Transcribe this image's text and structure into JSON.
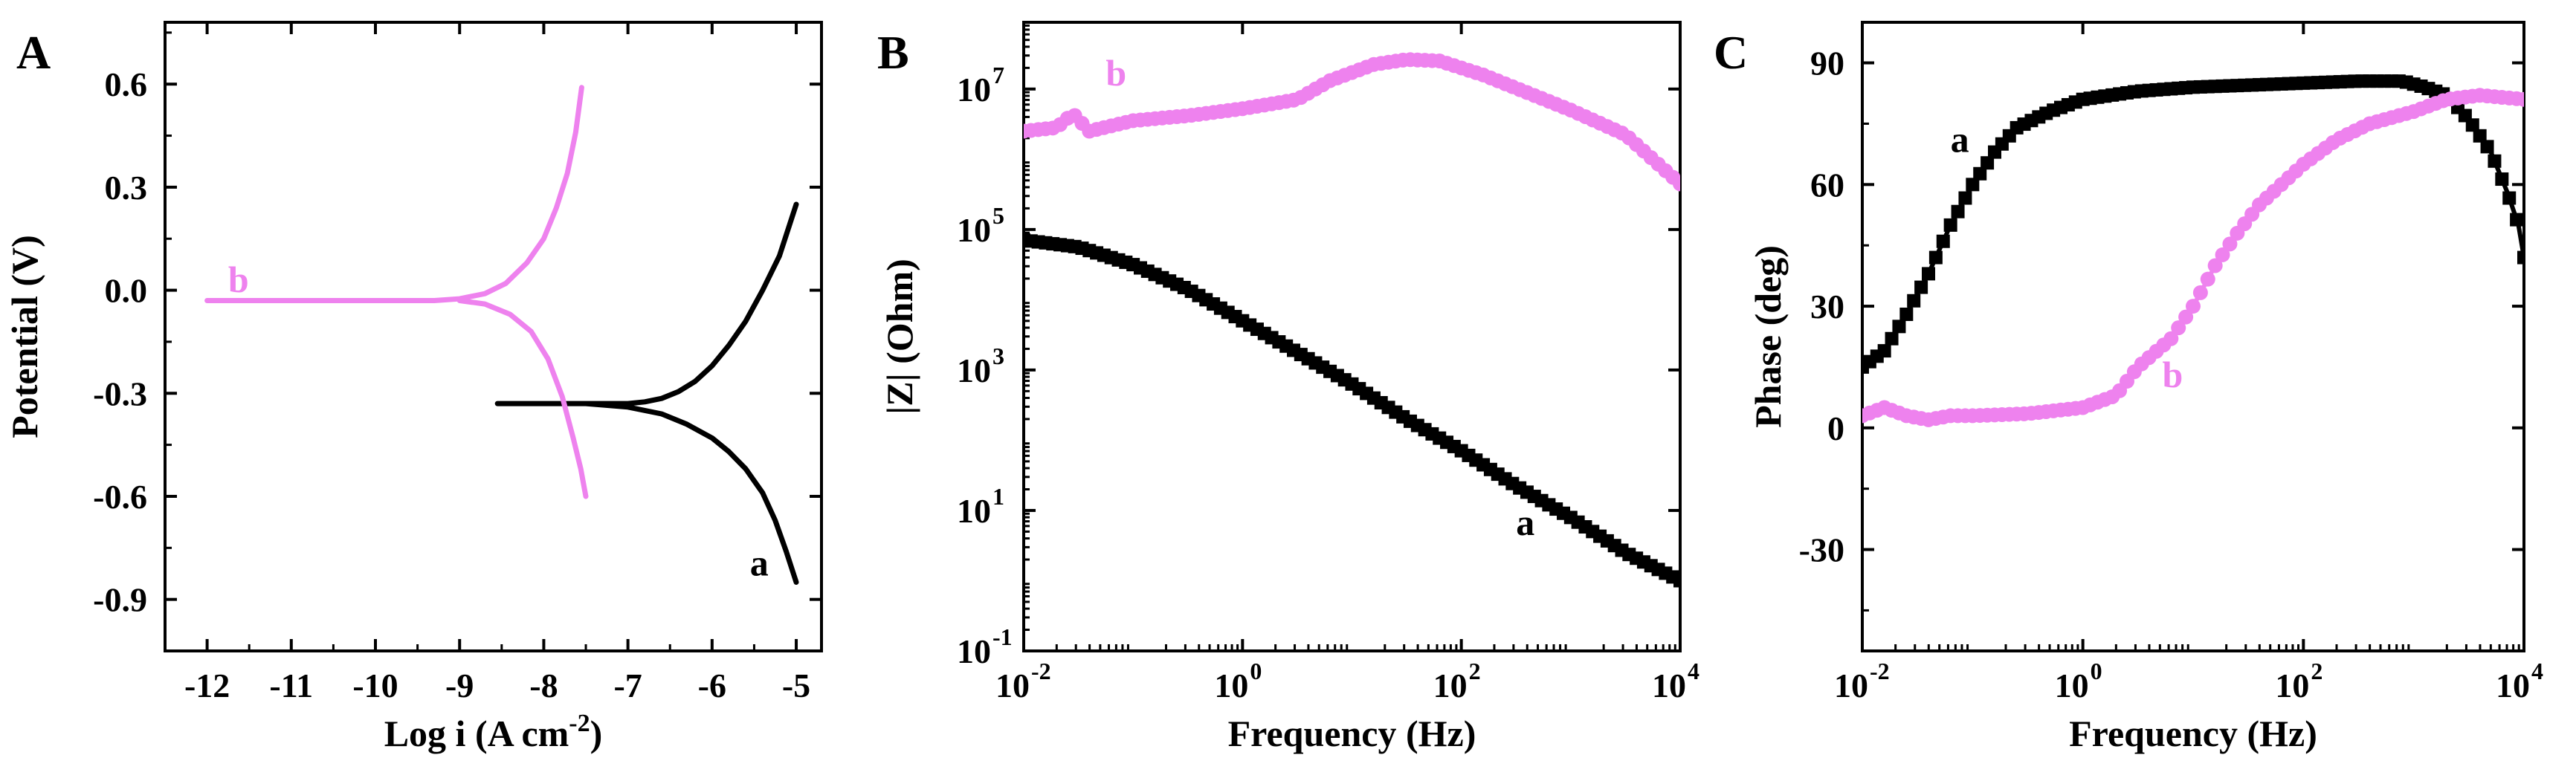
{
  "colors": {
    "a": "#000000",
    "b": "#ee82ee"
  },
  "chart_data": [
    {
      "id": "A",
      "type": "line",
      "panel_label": "A",
      "title": "",
      "xlabel": "Log i (A cm",
      "xlabel_sup": "-2",
      "xlabel_close": ")",
      "ylabel": "Potential (V)",
      "xlim": [
        -12.5,
        -4.7
      ],
      "ylim": [
        -1.05,
        0.78
      ],
      "xticks": [
        -12,
        -11,
        -10,
        -9,
        -8,
        -7,
        -6,
        -5
      ],
      "xtick_labels": [
        "-12",
        "-11",
        "-10",
        "-9",
        "-8",
        "-7",
        "-6",
        "-5"
      ],
      "yticks": [
        0.6,
        0.3,
        0.0,
        -0.3,
        -0.6,
        -0.9
      ],
      "ytick_labels": [
        "0.6",
        "0.3",
        "0.0",
        "-0.3",
        "-0.6",
        "-0.9"
      ],
      "series": [
        {
          "name": "a",
          "color": "#000000",
          "points": [
            [
              -8.55,
              -0.33
            ],
            [
              -8.0,
              -0.33
            ],
            [
              -7.5,
              -0.33
            ],
            [
              -7.0,
              -0.33
            ],
            [
              -6.8,
              -0.325
            ],
            [
              -6.6,
              -0.315
            ],
            [
              -6.4,
              -0.295
            ],
            [
              -6.2,
              -0.265
            ],
            [
              -6.0,
              -0.22
            ],
            [
              -5.8,
              -0.16
            ],
            [
              -5.6,
              -0.09
            ],
            [
              -5.4,
              0.0
            ],
            [
              -5.2,
              0.1
            ],
            [
              -5.0,
              0.25
            ],
            null,
            [
              -7.5,
              -0.33
            ],
            [
              -7.0,
              -0.34
            ],
            [
              -6.6,
              -0.36
            ],
            [
              -6.3,
              -0.39
            ],
            [
              -6.0,
              -0.43
            ],
            [
              -5.8,
              -0.47
            ],
            [
              -5.6,
              -0.52
            ],
            [
              -5.4,
              -0.59
            ],
            [
              -5.25,
              -0.67
            ],
            [
              -5.12,
              -0.76
            ],
            [
              -5.0,
              -0.85
            ]
          ]
        },
        {
          "name": "b",
          "color": "#ee82ee",
          "points": [
            [
              -12.0,
              -0.03
            ],
            [
              -11.0,
              -0.03
            ],
            [
              -10.0,
              -0.03
            ],
            [
              -9.3,
              -0.03
            ],
            [
              -9.0,
              -0.025
            ],
            [
              -8.7,
              -0.01
            ],
            [
              -8.45,
              0.02
            ],
            [
              -8.2,
              0.08
            ],
            [
              -8.0,
              0.15
            ],
            [
              -7.85,
              0.24
            ],
            [
              -7.72,
              0.34
            ],
            [
              -7.62,
              0.46
            ],
            [
              -7.55,
              0.59
            ],
            null,
            [
              -9.0,
              -0.03
            ],
            [
              -8.7,
              -0.04
            ],
            [
              -8.4,
              -0.07
            ],
            [
              -8.15,
              -0.12
            ],
            [
              -7.95,
              -0.2
            ],
            [
              -7.78,
              -0.31
            ],
            [
              -7.65,
              -0.43
            ],
            [
              -7.56,
              -0.52
            ],
            [
              -7.5,
              -0.6
            ]
          ]
        }
      ],
      "annotations": [
        {
          "text": "a",
          "x": -5.55,
          "y": -0.83,
          "color": "#000000"
        },
        {
          "text": "b",
          "x": -11.75,
          "y": -0.005,
          "color": "#ee82ee"
        }
      ]
    },
    {
      "id": "B",
      "type": "line",
      "panel_label": "B",
      "title": "",
      "xlabel": "Frequency (Hz)",
      "ylabel": "|Z| (Ohm)",
      "xscale": "log",
      "yscale": "log",
      "xlim": [
        -2,
        4
      ],
      "ylim": [
        -1,
        7.95
      ],
      "xticks": [
        -2,
        0,
        2,
        4
      ],
      "xtick_labels": [
        "10",
        "10",
        "10",
        "10"
      ],
      "xtick_exps": [
        "-2",
        "0",
        "2",
        "4"
      ],
      "yticks": [
        -1,
        1,
        3,
        5,
        7
      ],
      "ytick_labels": [
        "10",
        "10",
        "10",
        "10",
        "10"
      ],
      "ytick_exps": [
        "-1",
        "1",
        "3",
        "5",
        "7"
      ],
      "series": [
        {
          "name": "a",
          "color": "#000000",
          "marker": "square",
          "points_log10": [
            [
              -2.0,
              4.85
            ],
            [
              -1.5,
              4.75
            ],
            [
              -1.0,
              4.5
            ],
            [
              -0.5,
              4.15
            ],
            [
              0.0,
              3.7
            ],
            [
              0.5,
              3.25
            ],
            [
              1.0,
              2.8
            ],
            [
              1.5,
              2.3
            ],
            [
              2.0,
              1.85
            ],
            [
              2.5,
              1.35
            ],
            [
              3.0,
              0.9
            ],
            [
              3.5,
              0.4
            ],
            [
              4.0,
              0.0
            ]
          ]
        },
        {
          "name": "b",
          "color": "#ee82ee",
          "marker": "circle",
          "points_log10": [
            [
              -2.0,
              6.4
            ],
            [
              -1.7,
              6.45
            ],
            [
              -1.55,
              6.65
            ],
            [
              -1.4,
              6.4
            ],
            [
              -1.0,
              6.55
            ],
            [
              -0.5,
              6.62
            ],
            [
              0.0,
              6.72
            ],
            [
              0.5,
              6.85
            ],
            [
              0.8,
              7.12
            ],
            [
              1.2,
              7.35
            ],
            [
              1.5,
              7.42
            ],
            [
              1.8,
              7.4
            ],
            [
              2.2,
              7.2
            ],
            [
              2.6,
              6.95
            ],
            [
              3.0,
              6.7
            ],
            [
              3.5,
              6.35
            ],
            [
              4.0,
              5.65
            ]
          ]
        }
      ],
      "annotations": [
        {
          "text": "a",
          "x": 2.5,
          "y": 0.65,
          "color": "#000000"
        },
        {
          "text": "b",
          "x": -1.25,
          "y": 7.05,
          "color": "#ee82ee"
        }
      ]
    },
    {
      "id": "C",
      "type": "line",
      "panel_label": "C",
      "title": "",
      "xlabel": "Frequency (Hz)",
      "ylabel": "Phase (deg)",
      "xscale": "log",
      "xlim": [
        -2,
        4
      ],
      "ylim": [
        -55,
        100
      ],
      "xticks": [
        -2,
        0,
        2,
        4
      ],
      "xtick_labels": [
        "10",
        "10",
        "10",
        "10"
      ],
      "xtick_exps": [
        "-2",
        "0",
        "2",
        "4"
      ],
      "yticks": [
        90,
        60,
        30,
        0,
        -30
      ],
      "ytick_labels": [
        "90",
        "60",
        "30",
        "0",
        "-30"
      ],
      "series": [
        {
          "name": "a",
          "color": "#000000",
          "marker": "square",
          "points_log10": [
            [
              -2.0,
              15
            ],
            [
              -1.8,
              19
            ],
            [
              -1.6,
              28
            ],
            [
              -1.4,
              38
            ],
            [
              -1.2,
              50
            ],
            [
              -1.0,
              60
            ],
            [
              -0.8,
              68
            ],
            [
              -0.6,
              74
            ],
            [
              -0.3,
              78
            ],
            [
              0.0,
              81
            ],
            [
              0.5,
              83
            ],
            [
              1.0,
              84
            ],
            [
              1.5,
              84.5
            ],
            [
              2.0,
              85
            ],
            [
              2.5,
              85.5
            ],
            [
              2.9,
              85.5
            ],
            [
              3.1,
              84
            ],
            [
              3.3,
              82
            ],
            [
              3.5,
              76
            ],
            [
              3.7,
              68
            ],
            [
              3.85,
              58
            ],
            [
              3.95,
              50
            ],
            [
              4.0,
              42
            ]
          ]
        },
        {
          "name": "b",
          "color": "#ee82ee",
          "marker": "circle",
          "points_log10": [
            [
              -2.0,
              3
            ],
            [
              -1.8,
              5
            ],
            [
              -1.6,
              3
            ],
            [
              -1.4,
              2
            ],
            [
              -1.2,
              3
            ],
            [
              -1.0,
              3
            ],
            [
              -0.5,
              3.5
            ],
            [
              0.0,
              5
            ],
            [
              0.3,
              8
            ],
            [
              0.5,
              15
            ],
            [
              0.8,
              22
            ],
            [
              1.0,
              30
            ],
            [
              1.2,
              40
            ],
            [
              1.4,
              48
            ],
            [
              1.6,
              55
            ],
            [
              1.8,
              60
            ],
            [
              2.0,
              65
            ],
            [
              2.3,
              71
            ],
            [
              2.6,
              75
            ],
            [
              3.0,
              78
            ],
            [
              3.3,
              81
            ],
            [
              3.6,
              82
            ],
            [
              4.0,
              81
            ]
          ]
        }
      ],
      "annotations": [
        {
          "text": "a",
          "x": -1.2,
          "y": 68,
          "color": "#000000"
        },
        {
          "text": "b",
          "x": 0.72,
          "y": 10,
          "color": "#ee82ee"
        }
      ]
    }
  ]
}
